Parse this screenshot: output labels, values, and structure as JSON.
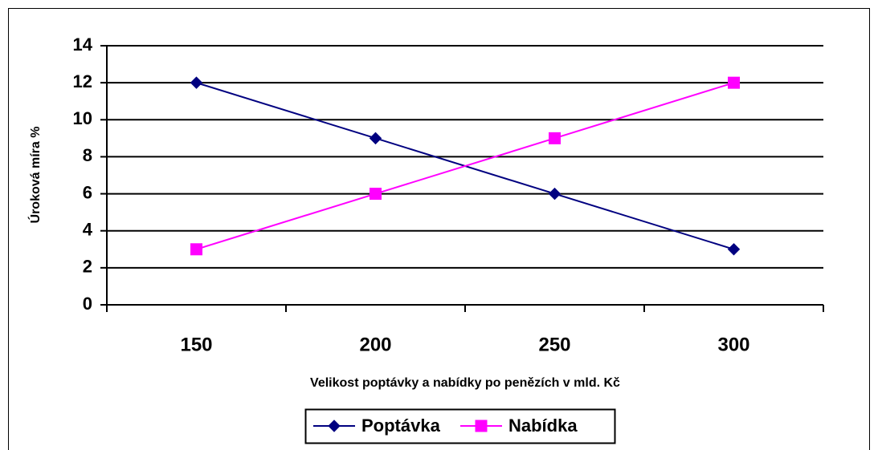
{
  "chart_data": {
    "type": "line",
    "categories": [
      "150",
      "200",
      "250",
      "300"
    ],
    "series": [
      {
        "name": "Poptávka",
        "color": "#000080",
        "marker": "diamond",
        "values": [
          12,
          9,
          6,
          3
        ]
      },
      {
        "name": "Nabídka",
        "color": "#ff00ff",
        "marker": "square",
        "values": [
          3,
          6,
          9,
          12
        ]
      }
    ],
    "xlabel": "Velikost poptávky a nabídky po penězích v mld. Kč",
    "ylabel": "Úroková míra %",
    "ylim": [
      0,
      14
    ],
    "yticks": [
      0,
      2,
      4,
      6,
      8,
      10,
      12,
      14
    ],
    "grid": true,
    "legend": "bottom"
  }
}
